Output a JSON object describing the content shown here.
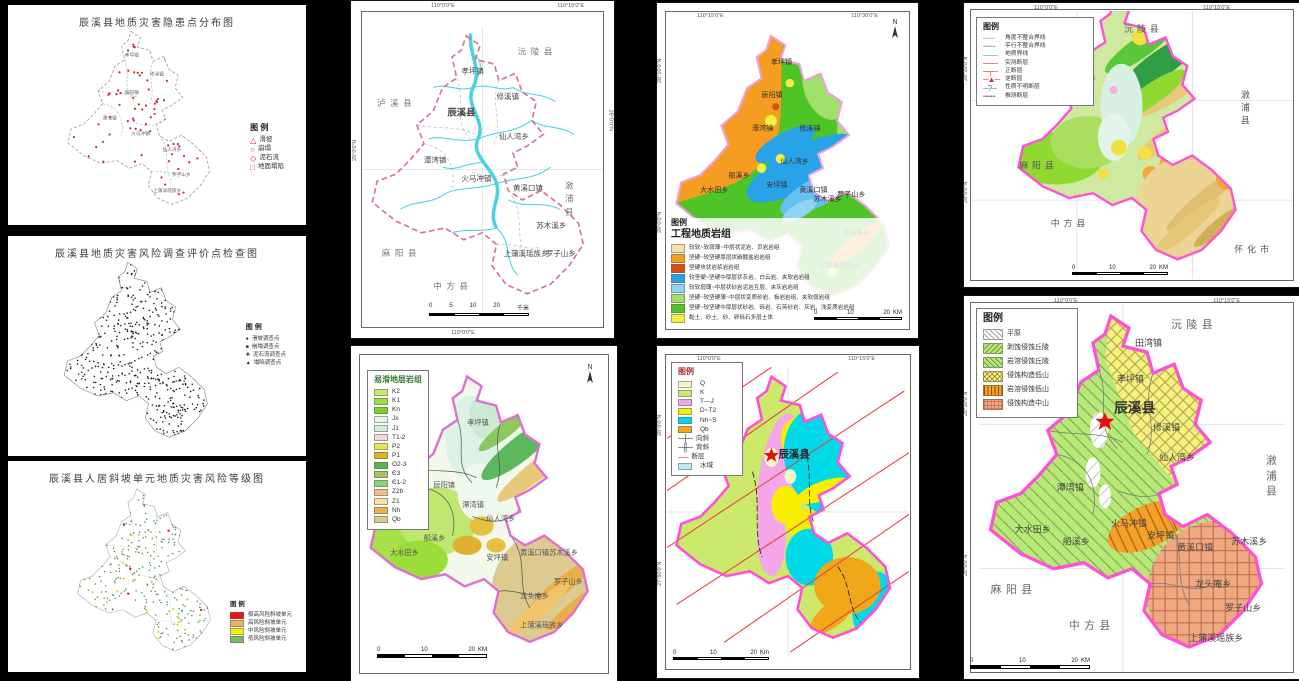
{
  "shared": {
    "county": "辰溪县",
    "north": "N",
    "legend_word": "图例",
    "legend_word_spaced": "图 例",
    "towns": [
      "孝坪镇",
      "田湾镇",
      "辰阳镇",
      "修溪镇",
      "火马冲镇",
      "潭湾镇",
      "船溪乡",
      "大水田乡",
      "安坪镇",
      "黄溪口镇",
      "罗子山乡",
      "苏木溪乡",
      "上蒲溪瑶族乡",
      "仙人湾乡",
      "龙头庵乡",
      "小龙门乡"
    ],
    "neighbors": {
      "yuanling": "沅陵县",
      "luxi": "泸溪县",
      "mayang": "麻阳县",
      "zhongfang": "中方县",
      "xupu": "漵浦县",
      "huaihua": "怀化市"
    },
    "coords": {
      "e1": "110°0′0″E",
      "e2": "110°15′0″E",
      "e3": "110°30′0″E",
      "n1": "28°10′0″N",
      "n2": "28°0′0″N",
      "n3": "27°50′0″N"
    }
  },
  "p1": {
    "title": "辰溪县地质灾害隐患点分布图",
    "legend_title": "图 例",
    "items": [
      {
        "sym": "△",
        "color": "#c22",
        "label": "滑坡"
      },
      {
        "sym": "○",
        "color": "#c22",
        "label": "崩塌"
      },
      {
        "sym": "◇",
        "color": "#c22",
        "label": "泥石流"
      },
      {
        "sym": "□",
        "color": "#c22",
        "label": "地面塌陷"
      }
    ]
  },
  "p2": {
    "title": "辰溪县地质灾害风险调查评价点检查图",
    "legend_title": "图 例",
    "items": [
      {
        "sym": "●",
        "color": "#222",
        "label": "滑坡调查点"
      },
      {
        "sym": "■",
        "color": "#222",
        "label": "崩塌调查点"
      },
      {
        "sym": "✚",
        "color": "#222",
        "label": "泥石流调查点"
      },
      {
        "sym": "▲",
        "color": "#222",
        "label": "塌陷调查点"
      }
    ]
  },
  "p3": {
    "title": "辰溪县人居斜坡单元地质灾害风险等级图",
    "legend_title": "图 例",
    "items": [
      {
        "fill": "#ee1111",
        "label": "极高风险斜坡单元"
      },
      {
        "fill": "#f0b060",
        "label": "高风险斜坡单元"
      },
      {
        "fill": "#f6f000",
        "label": "中风险斜坡单元"
      },
      {
        "fill": "#7ab86a",
        "label": "低风险斜坡单元"
      }
    ]
  },
  "p4": {
    "scale": [
      "0",
      "5",
      "10",
      "20"
    ],
    "scale_unit": "千米"
  },
  "p5": {
    "legend_title": "易滑地层岩组",
    "scale": [
      "0",
      "10",
      "20"
    ],
    "scale_unit": "KM",
    "items": [
      {
        "fill": "#c9e96b",
        "label": "K2"
      },
      {
        "fill": "#9ade3c",
        "label": "K1"
      },
      {
        "fill": "#7bd41e",
        "label": "Kn"
      },
      {
        "fill": "#e9f7e6",
        "label": "Jx"
      },
      {
        "fill": "#cdeedd",
        "label": "J1"
      },
      {
        "fill": "#f7d7d3",
        "label": "T1-2"
      },
      {
        "fill": "#ede456",
        "label": "P2"
      },
      {
        "fill": "#e9b01b",
        "label": "P1"
      },
      {
        "fill": "#58b558",
        "label": "O2-3"
      },
      {
        "fill": "#a2c75b",
        "label": "Є3"
      },
      {
        "fill": "#8ed476",
        "label": "Є1-2"
      },
      {
        "fill": "#f2bd8b",
        "label": "Z2b"
      },
      {
        "fill": "#f5e1a1",
        "label": "Z1"
      },
      {
        "fill": "#edb046",
        "label": "Nh"
      },
      {
        "fill": "#d9c98e",
        "label": "Qb"
      }
    ]
  },
  "p6": {
    "legend_word": "图例",
    "legend_title": "工程地质岩组",
    "scale": [
      "0",
      "10",
      "20"
    ],
    "scale_unit": "KM",
    "items": [
      {
        "fill": "#f9dfae",
        "label": "较软~软弱薄~中层状泥岩、页岩岩组"
      },
      {
        "fill": "#f59d20",
        "label": "坚硬~较坚硬厚层状碳酸盐岩岩组"
      },
      {
        "fill": "#d84f10",
        "label": "坚硬块状岩浆岩岩组"
      },
      {
        "fill": "#29a3e8",
        "label": "较坚硬~坚硬中厚层状灰岩、白云岩、夹软岩岩组"
      },
      {
        "fill": "#8fd4f0",
        "label": "较软弱薄~中层状砂岩泥岩互层、夹灰岩岩组"
      },
      {
        "fill": "#9fe06a",
        "label": "坚硬~较坚硬薄~中层状变质砂岩、板岩岩组、夹软弱岩组"
      },
      {
        "fill": "#4fc426",
        "label": "坚硬~较坚硬中厚层状砂岩、砾岩、石英砂岩、灰岩、浅变质岩岩组"
      },
      {
        "fill": "#f5ef3d",
        "label": "黏土、砂土、砂、卵砾石多层土体"
      }
    ]
  },
  "p7": {
    "legend_word": "图例",
    "scale": [
      "0",
      "10",
      "20"
    ],
    "scale_unit": "Km",
    "items": [
      {
        "fill": "#f8f7c8",
        "label": "Q"
      },
      {
        "fill": "#cde96b",
        "label": "K"
      },
      {
        "fill": "#f4a6e8",
        "label": "T—J"
      },
      {
        "fill": "#f8ee00",
        "label": "D~T2"
      },
      {
        "fill": "#00d9e8",
        "label": "Nh~S"
      },
      {
        "fill": "#f0a818",
        "label": "Qb"
      },
      {
        "sym": "─┼─",
        "color": "#333",
        "label": "向斜"
      },
      {
        "sym": "─╫─",
        "color": "#333",
        "label": "背斜"
      },
      {
        "sym": "──",
        "color": "#e03030",
        "label": "断层"
      },
      {
        "fill": "#bfe8f5",
        "label": "水域"
      }
    ]
  },
  "p8": {
    "legend_word": "图例",
    "scale": [
      "0",
      "10",
      "20"
    ],
    "scale_unit": "KM",
    "items": [
      {
        "sym": "┈┈┈",
        "color": "#777",
        "label": "角度不整合界线"
      },
      {
        "sym": "╌╌╌",
        "color": "#777",
        "label": "平行不整合界线"
      },
      {
        "sym": "───",
        "color": "#888",
        "label": "地质界线"
      },
      {
        "sym": "───",
        "color": "#d03030",
        "label": "实测断层"
      },
      {
        "sym": "─┬─",
        "color": "#d03030",
        "label": "正断层"
      },
      {
        "sym": "─▲─",
        "color": "#d03030",
        "label": "逆断层"
      },
      {
        "sym": "─?─",
        "color": "#777",
        "label": "性质不明断层"
      },
      {
        "sym": "┅┅┅",
        "color": "#777",
        "label": "推测断层"
      }
    ]
  },
  "p9": {
    "legend_word": "图例",
    "scale": [
      "0",
      "10",
      "20"
    ],
    "scale_unit": "KM",
    "items": [
      {
        "fill": "#ffffff",
        "hatch": "diag",
        "label": "平原"
      },
      {
        "fill": "#b8e878",
        "hatch": "bdiag",
        "label": "剥蚀侵蚀丘陵"
      },
      {
        "fill": "#b8e878",
        "hatch": "fdiag",
        "label": "岩溶侵蚀丘陵"
      },
      {
        "fill": "#f6f080",
        "hatch": "cross",
        "label": "侵蚀构造低山"
      },
      {
        "fill": "#f5a028",
        "hatch": "vert",
        "label": "岩溶侵蚀低山"
      },
      {
        "fill": "#f0a880",
        "hatch": "grid",
        "label": "侵蚀构造中山"
      }
    ]
  }
}
